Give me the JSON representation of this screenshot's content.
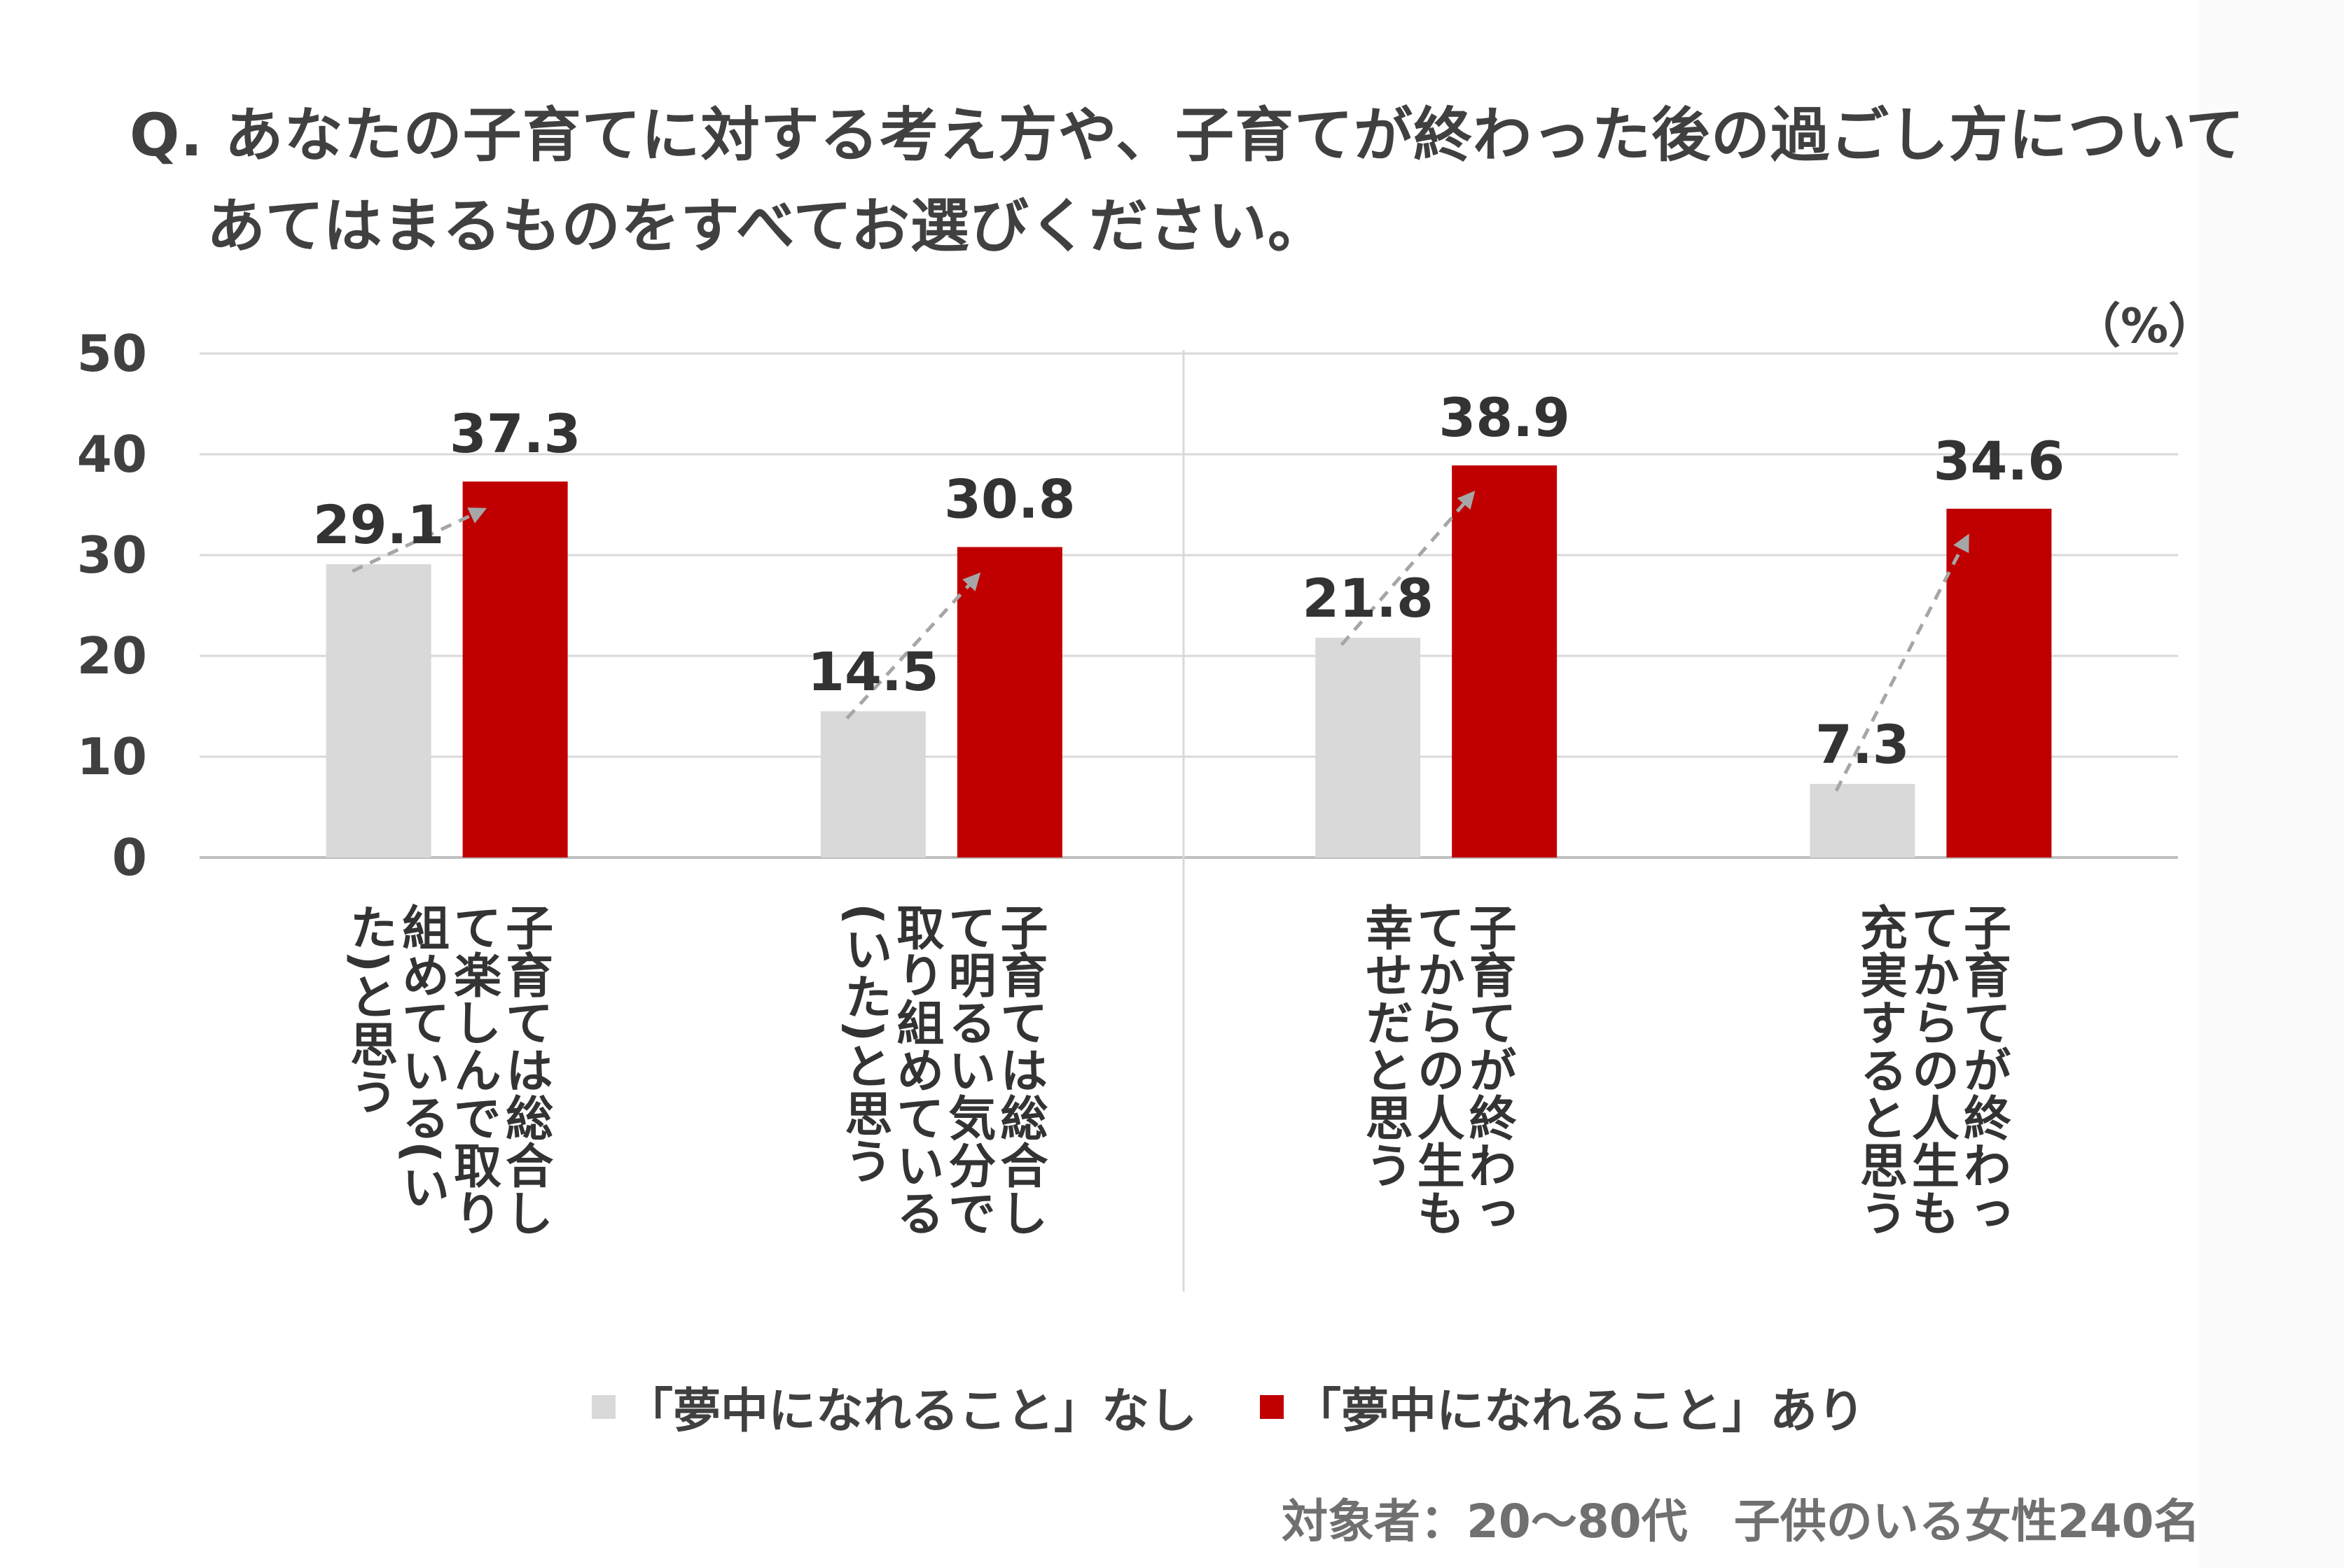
{
  "title": {
    "line1": "Q. あなたの子育てに対する考え方や、子育てが終わった後の過ごし方について",
    "line2": "あてはまるものをすべてお選びください。"
  },
  "unit": "（%）",
  "legend": {
    "items": [
      {
        "label": "「夢中になれること」なし",
        "color": "#d9d9d9"
      },
      {
        "label": "「夢中になれること」あり",
        "color": "#c00000"
      }
    ]
  },
  "footnote": "対象者：20～80代　子供のいる女性240名",
  "chart_data": {
    "type": "bar",
    "categories": [
      "子育ては総合して楽しんで取り組めている(いた)と思う",
      "子育ては総合して明るい気分で取り組めている(いた)と思う",
      "子育てが終わってからの人生も幸せだと思う",
      "子育てが終わってからの人生も充実すると思う"
    ],
    "category_lines": [
      [
        "子育ては総合し",
        "て楽しんで取り",
        "組めている(い",
        "た)と思う"
      ],
      [
        "子育ては総合し",
        "て明るい気分で",
        "取り組めている",
        "(いた)と思う"
      ],
      [
        "子育てが終わっ",
        "てからの人生も",
        "幸せだと思う"
      ],
      [
        "子育てが終わっ",
        "てからの人生も",
        "充実すると思う"
      ]
    ],
    "series": [
      {
        "name": "「夢中になれること」なし",
        "values": [
          29.1,
          14.5,
          21.8,
          7.3
        ],
        "color": "#d9d9d9"
      },
      {
        "name": "「夢中になれること」あり",
        "values": [
          37.3,
          30.8,
          38.9,
          34.6
        ],
        "color": "#c00000"
      }
    ],
    "yticks": [
      0,
      10,
      20,
      30,
      40,
      50
    ],
    "ylim": [
      0,
      50
    ],
    "grid": true
  }
}
